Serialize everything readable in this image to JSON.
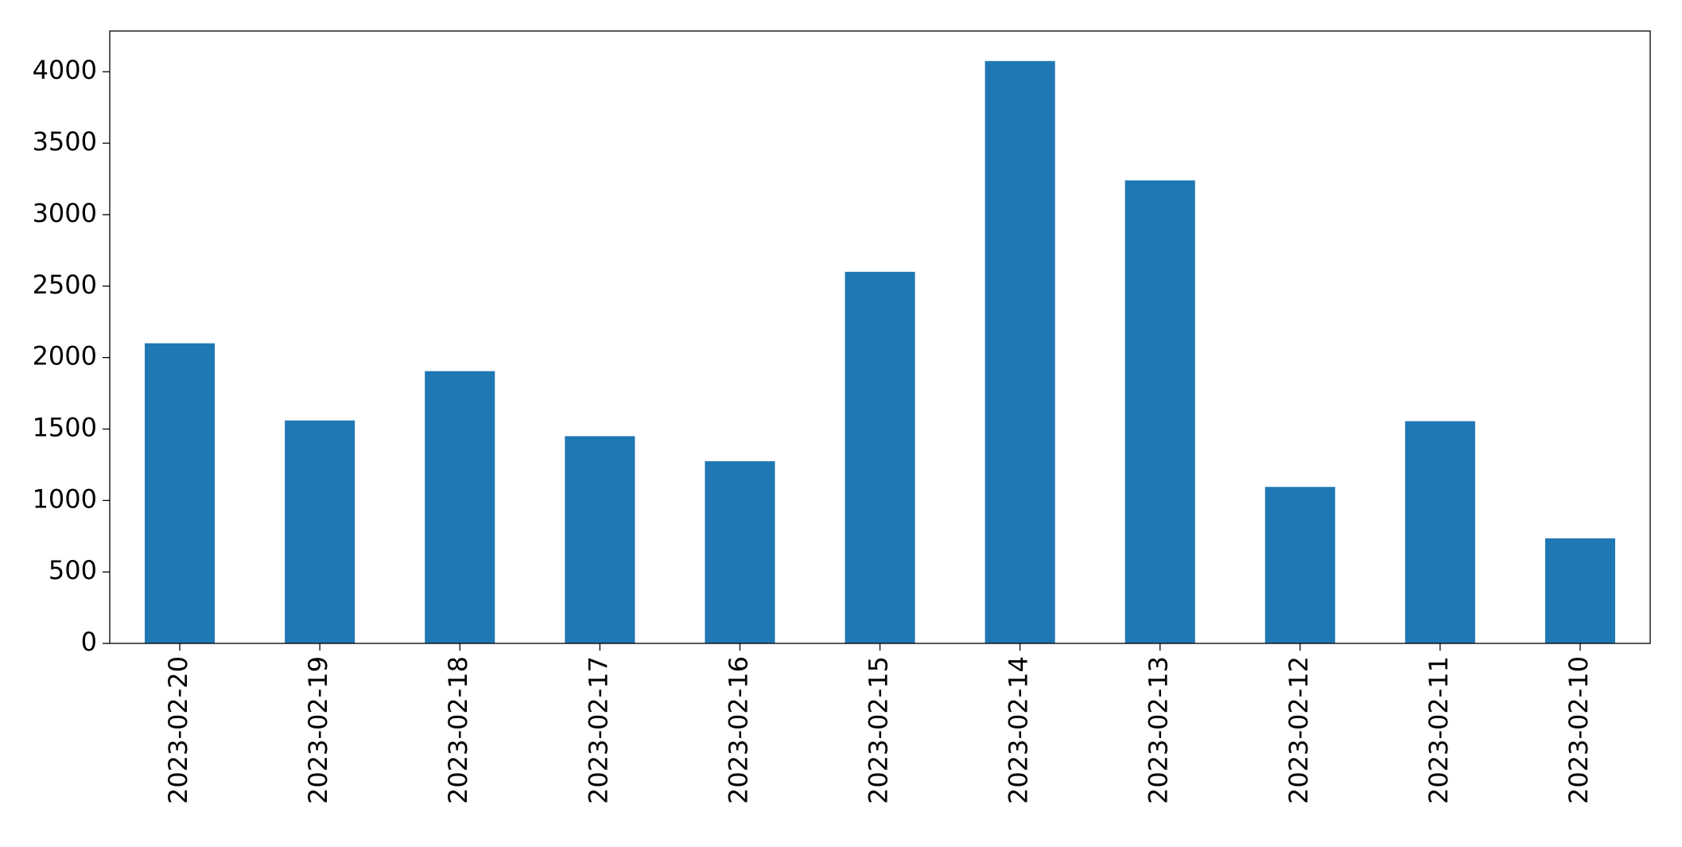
{
  "chart_data": {
    "type": "bar",
    "categories": [
      "2023-02-20",
      "2023-02-19",
      "2023-02-18",
      "2023-02-17",
      "2023-02-16",
      "2023-02-15",
      "2023-02-14",
      "2023-02-13",
      "2023-02-12",
      "2023-02-11",
      "2023-02-10"
    ],
    "values": [
      2100,
      1560,
      1905,
      1450,
      1275,
      2600,
      4075,
      3240,
      1095,
      1555,
      735
    ],
    "color": "#1f77b4",
    "ylim": [
      0,
      4285
    ],
    "yticks": [
      0,
      500,
      1000,
      1500,
      2000,
      2500,
      3000,
      3500,
      4000
    ],
    "grid": false
  }
}
